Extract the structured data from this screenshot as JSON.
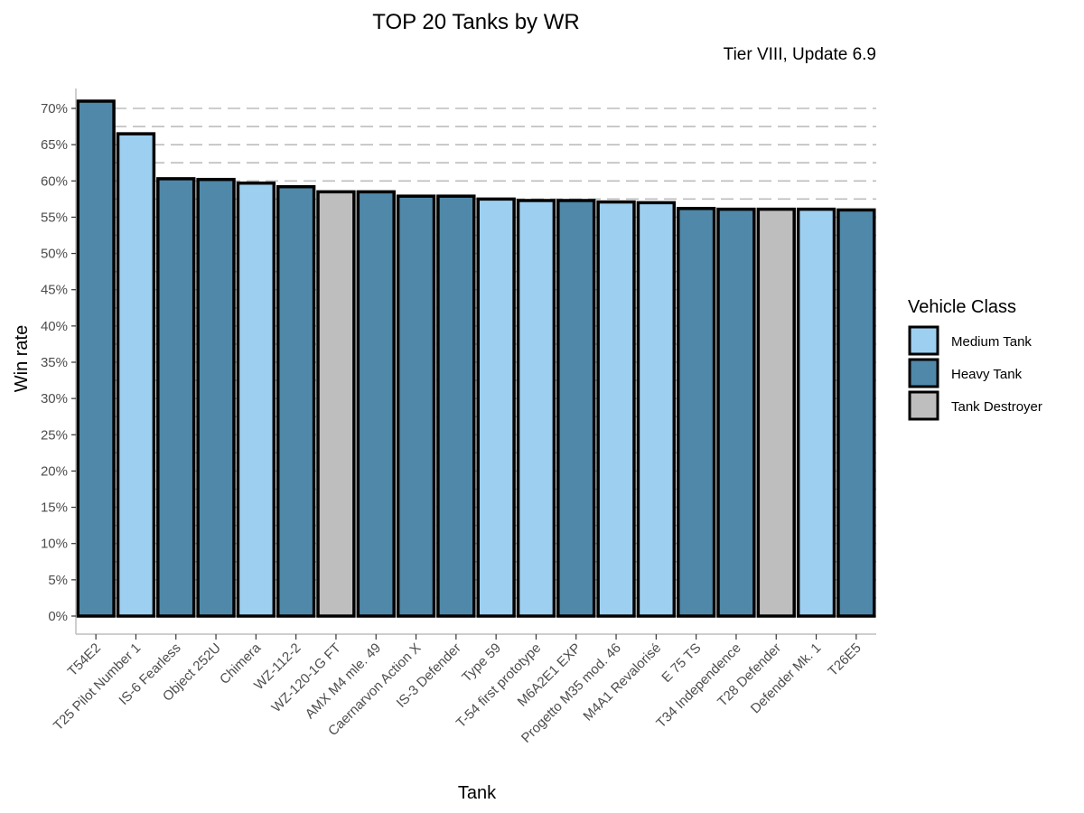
{
  "chart_data": {
    "type": "bar",
    "title": "TOP 20 Tanks by WR",
    "subtitle": "Tier VIII, Update 6.9",
    "xlabel": "Tank",
    "ylabel": "Win rate",
    "ylim": [
      0,
      0.72
    ],
    "y_ticks": [
      0,
      0.05,
      0.1,
      0.15,
      0.2,
      0.25,
      0.3,
      0.35,
      0.4,
      0.45,
      0.5,
      0.55,
      0.6,
      0.65,
      0.7
    ],
    "y_tick_labels": [
      "0%",
      "5%",
      "10%",
      "15%",
      "20%",
      "25%",
      "30%",
      "35%",
      "40%",
      "45%",
      "50%",
      "55%",
      "60%",
      "65%",
      "70%"
    ],
    "grid": "horizontal dashed",
    "legend_position": "right",
    "legend": {
      "title": "Vehicle Class",
      "entries": [
        {
          "label": "Medium Tank",
          "color": "#9dcff0"
        },
        {
          "label": "Heavy Tank",
          "color": "#4f88a8"
        },
        {
          "label": "Tank Destroyer",
          "color": "#bebebe"
        }
      ]
    },
    "categories": [
      "T54E2",
      "T25 Pilot Number 1",
      "IS-6 Fearless",
      "Object 252U",
      "Chimera",
      "WZ-112-2",
      "WZ-120-1G FT",
      "AMX M4 mle. 49",
      "Caernarvon Action X",
      "IS-3 Defender",
      "Type 59",
      "T-54 first prototype",
      "M6A2E1 EXP",
      "Progetto M35 mod. 46",
      "M4A1 Revalorisé",
      "E 75 TS",
      "T34 Independence",
      "T28 Defender",
      "Defender Mk. 1",
      "T26E5"
    ],
    "values": [
      0.71,
      0.665,
      0.603,
      0.602,
      0.597,
      0.592,
      0.585,
      0.585,
      0.579,
      0.579,
      0.575,
      0.573,
      0.573,
      0.571,
      0.57,
      0.562,
      0.561,
      0.561,
      0.561,
      0.56
    ],
    "classes": [
      "Heavy Tank",
      "Medium Tank",
      "Heavy Tank",
      "Heavy Tank",
      "Medium Tank",
      "Heavy Tank",
      "Tank Destroyer",
      "Heavy Tank",
      "Heavy Tank",
      "Heavy Tank",
      "Medium Tank",
      "Medium Tank",
      "Heavy Tank",
      "Medium Tank",
      "Medium Tank",
      "Heavy Tank",
      "Heavy Tank",
      "Tank Destroyer",
      "Medium Tank",
      "Heavy Tank"
    ]
  }
}
